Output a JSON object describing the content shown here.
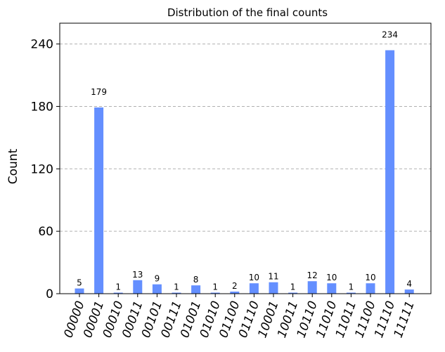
{
  "chart_data": {
    "type": "bar",
    "title": "Distribution of the final counts",
    "xlabel": "",
    "ylabel": "Count",
    "ylim": [
      0,
      260
    ],
    "yticks": [
      0,
      60,
      120,
      180,
      240
    ],
    "grid": "y-dashed",
    "color": "#648fff",
    "categories": [
      "00000",
      "00001",
      "00010",
      "00011",
      "00101",
      "00111",
      "01001",
      "01010",
      "01100",
      "01110",
      "10001",
      "10011",
      "10110",
      "11010",
      "11011",
      "11100",
      "11110",
      "11111"
    ],
    "values": [
      5,
      179,
      1,
      13,
      9,
      1,
      8,
      1,
      2,
      10,
      11,
      1,
      12,
      10,
      1,
      10,
      234,
      4
    ]
  }
}
